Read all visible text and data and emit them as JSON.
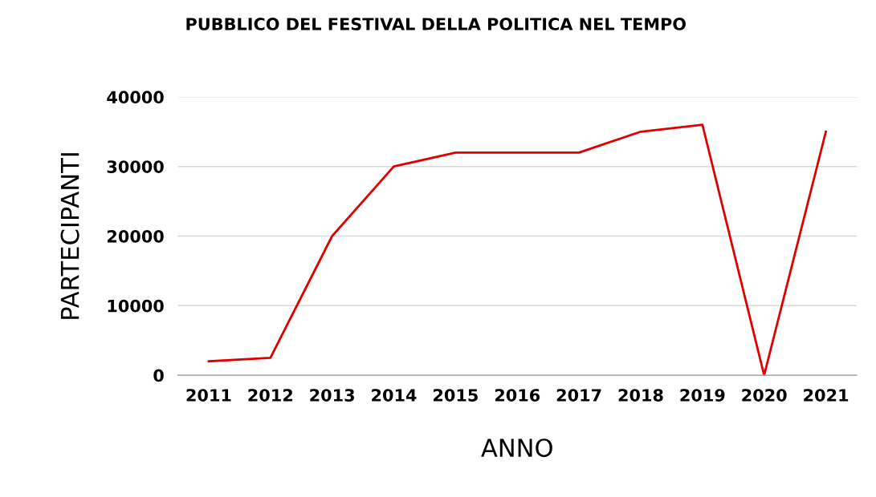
{
  "chart_data": {
    "type": "line",
    "title": "PUBBLICO DEL FESTIVAL DELLA POLITICA NEL TEMPO",
    "xlabel": "ANNO",
    "ylabel": "PARTECIPANTI",
    "categories": [
      "2011",
      "2012",
      "2013",
      "2014",
      "2015",
      "2016",
      "2017",
      "2018",
      "2019",
      "2020",
      "2021"
    ],
    "series": [
      {
        "color": "#e00000",
        "values": [
          2000,
          2500,
          20000,
          30000,
          32000,
          32000,
          32000,
          35000,
          36000,
          0,
          35000
        ]
      }
    ],
    "ylim": [
      0,
      40000
    ],
    "yticks": [
      0,
      10000,
      20000,
      30000,
      40000
    ],
    "grid": "y",
    "legend": false,
    "marker": "none",
    "line_style": "solid"
  }
}
